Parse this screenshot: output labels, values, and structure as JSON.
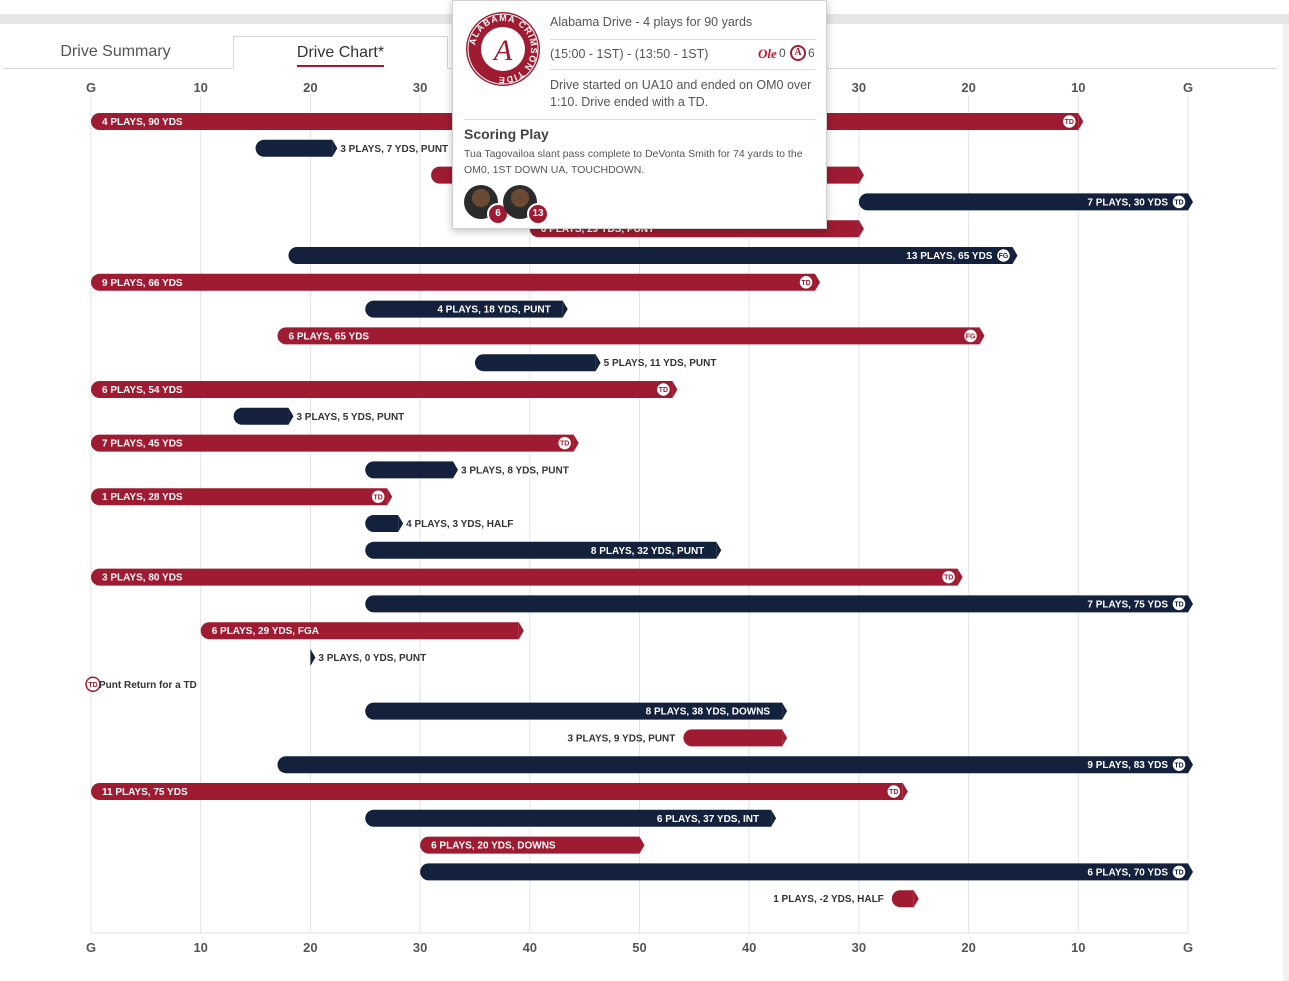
{
  "tabs": [
    {
      "label": "Drive Summary",
      "active": false
    },
    {
      "label": "Drive Chart*",
      "active": true
    }
  ],
  "colors": {
    "alabama": "#9e1b32",
    "ole_miss": "#14213d",
    "grid": "#e3e3e3"
  },
  "tooltip": {
    "title": "Alabama Drive - 4 plays for 90 yards",
    "time": "(15:00 - 1ST) - (13:50 - 1ST)",
    "score_ole_miss": "0",
    "score_alabama": "6",
    "description": "Drive started on UA10 and ended on OM0 over 1:10. Drive ended with a TD.",
    "scoring_play_heading": "Scoring Play",
    "scoring_play_text": "Tua Tagovailoa slant pass complete to DeVonta Smith for 74 yards to the OM0, 1ST DOWN UA, TOUCHDOWN.",
    "logo_text": "ALABAMA CRIMSON TIDE",
    "players": [
      {
        "number": "6"
      },
      {
        "number": "13"
      }
    ]
  },
  "chart_data": {
    "type": "bar",
    "orientation": "horizontal",
    "axis_ticks": [
      "G",
      "10",
      "20",
      "30",
      "40",
      "50",
      "40",
      "30",
      "20",
      "10",
      "G"
    ],
    "x_domain": [
      0,
      100
    ],
    "series": [
      {
        "name": "Alabama"
      },
      {
        "name": "Ole Miss"
      }
    ],
    "drives": [
      {
        "team": "Alabama",
        "start": 0,
        "end": 90,
        "label": "4 PLAYS, 90 YDS",
        "result": "TD"
      },
      {
        "team": "Ole Miss",
        "start": 15,
        "end": 22,
        "label": "3 PLAYS, 7 YDS, PUNT",
        "result": ""
      },
      {
        "team": "Alabama",
        "start": 31,
        "end": 70,
        "label": "",
        "result": ""
      },
      {
        "team": "Ole Miss",
        "start": 70,
        "end": 100,
        "label": "7 PLAYS, 30 YDS",
        "result": "TD"
      },
      {
        "team": "Alabama",
        "start": 40,
        "end": 70,
        "label": "6 PLAYS, 29 YDS, PUNT",
        "result": ""
      },
      {
        "team": "Ole Miss",
        "start": 18,
        "end": 84,
        "label": "13 PLAYS, 65 YDS",
        "result": "FG"
      },
      {
        "team": "Alabama",
        "start": 0,
        "end": 66,
        "label": "9 PLAYS, 66 YDS",
        "result": "TD"
      },
      {
        "team": "Ole Miss",
        "start": 25,
        "end": 43,
        "label": "4 PLAYS, 18 YDS, PUNT",
        "result": ""
      },
      {
        "team": "Alabama",
        "start": 17,
        "end": 81,
        "label": "6 PLAYS, 65 YDS",
        "result": "FG"
      },
      {
        "team": "Ole Miss",
        "start": 35,
        "end": 46,
        "label": "5 PLAYS, 11 YDS, PUNT",
        "result": ""
      },
      {
        "team": "Alabama",
        "start": 0,
        "end": 53,
        "label": "6 PLAYS, 54 YDS",
        "result": "TD"
      },
      {
        "team": "Ole Miss",
        "start": 13,
        "end": 18,
        "label": "3 PLAYS, 5 YDS, PUNT",
        "result": ""
      },
      {
        "team": "Alabama",
        "start": 0,
        "end": 44,
        "label": "7 PLAYS, 45 YDS",
        "result": "TD"
      },
      {
        "team": "Ole Miss",
        "start": 25,
        "end": 33,
        "label": "3 PLAYS, 8 YDS, PUNT",
        "result": ""
      },
      {
        "team": "Alabama",
        "start": 0,
        "end": 27,
        "label": "1 PLAYS, 28 YDS",
        "result": "TD"
      },
      {
        "team": "Ole Miss",
        "start": 25,
        "end": 28,
        "label": "4 PLAYS, 3 YDS, HALF",
        "result": ""
      },
      {
        "team": "Ole Miss",
        "start": 25,
        "end": 57,
        "label": "8 PLAYS, 32 YDS, PUNT",
        "result": ""
      },
      {
        "team": "Alabama",
        "start": 0,
        "end": 79,
        "label": "3 PLAYS, 80 YDS",
        "result": "TD"
      },
      {
        "team": "Ole Miss",
        "start": 25,
        "end": 100,
        "label": "7 PLAYS, 75 YDS",
        "result": "TD"
      },
      {
        "team": "Alabama",
        "start": 10,
        "end": 39,
        "label": "6 PLAYS, 29 YDS, FGA",
        "result": ""
      },
      {
        "team": "Ole Miss",
        "start": 20,
        "end": 20,
        "label": "3 PLAYS, 0 YDS, PUNT",
        "result": ""
      },
      {
        "team": "Alabama",
        "start": 0,
        "end": 0,
        "label": "Punt Return for a TD",
        "result": "TD"
      },
      {
        "team": "Ole Miss",
        "start": 25,
        "end": 63,
        "label": "8 PLAYS, 38 YDS, DOWNS",
        "result": ""
      },
      {
        "team": "Alabama",
        "start": 54,
        "end": 63,
        "label": "3 PLAYS, 9 YDS, PUNT",
        "result": ""
      },
      {
        "team": "Ole Miss",
        "start": 17,
        "end": 100,
        "label": "9 PLAYS, 83 YDS",
        "result": "TD"
      },
      {
        "team": "Alabama",
        "start": 0,
        "end": 74,
        "label": "11 PLAYS, 75 YDS",
        "result": "TD"
      },
      {
        "team": "Ole Miss",
        "start": 25,
        "end": 62,
        "label": "6 PLAYS, 37 YDS, INT",
        "result": ""
      },
      {
        "team": "Alabama",
        "start": 30,
        "end": 50,
        "label": "6 PLAYS, 20 YDS, DOWNS",
        "result": ""
      },
      {
        "team": "Ole Miss",
        "start": 30,
        "end": 100,
        "label": "6 PLAYS, 70 YDS",
        "result": "TD"
      },
      {
        "team": "Alabama",
        "start": 73,
        "end": 75,
        "label": "1 PLAYS, -2 YDS, HALF",
        "result": ""
      }
    ]
  }
}
